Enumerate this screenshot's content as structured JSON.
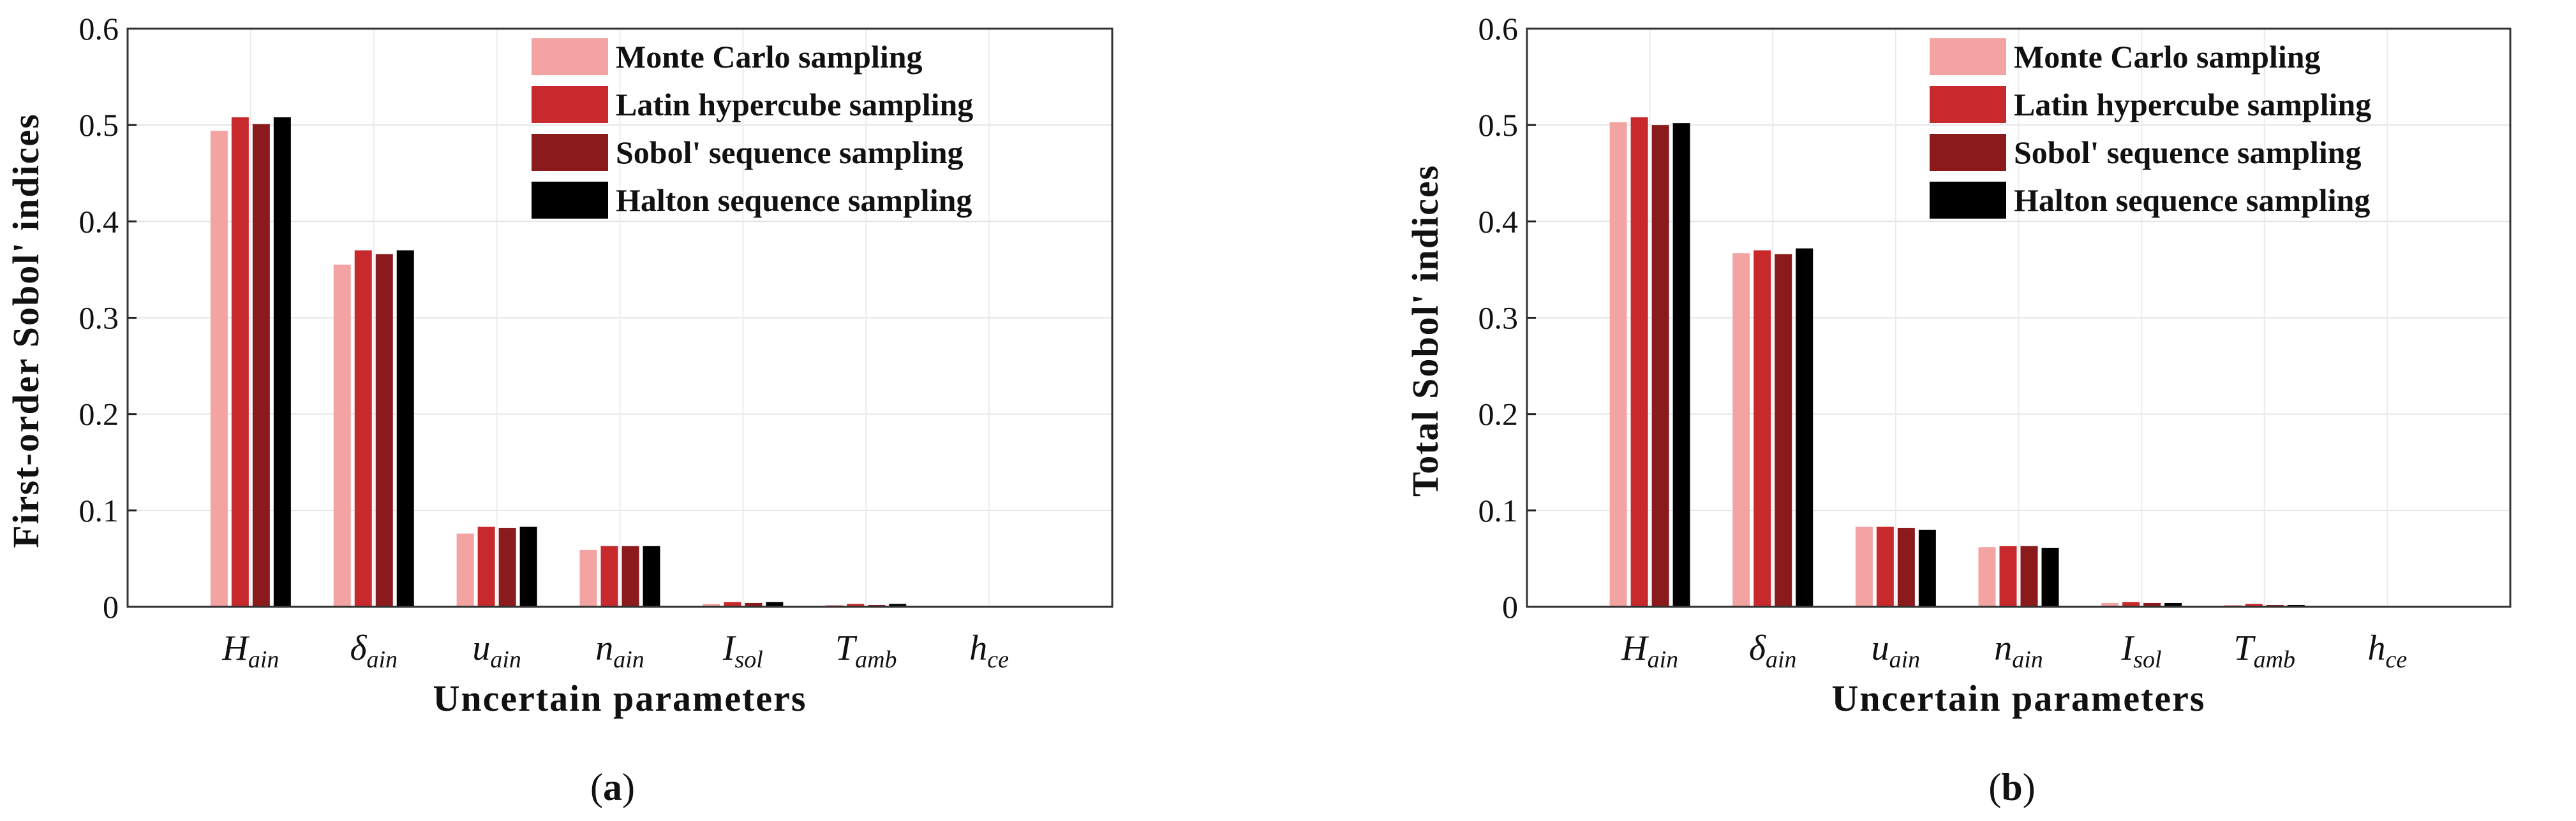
{
  "figure": {
    "colors": [
      "#f4a3a3",
      "#c8292c",
      "#8b1a1c",
      "#000000"
    ]
  },
  "chart_data": [
    {
      "type": "bar",
      "panel_label": "a",
      "xlabel": "Uncertain parameters",
      "ylabel": "First-order Sobol' indices",
      "ylim": [
        0,
        0.6
      ],
      "yticks": [
        "0",
        "0.1",
        "0.2",
        "0.3",
        "0.4",
        "0.5",
        "0.6"
      ],
      "grid": true,
      "legend_position": "top-right",
      "categories": [
        {
          "base": "H",
          "sub": "ain"
        },
        {
          "base": "δ",
          "sub": "ain"
        },
        {
          "base": "u",
          "sub": "ain"
        },
        {
          "base": "n",
          "sub": "ain"
        },
        {
          "base": "I",
          "sub": "sol"
        },
        {
          "base": "T",
          "sub": "amb"
        },
        {
          "base": "h",
          "sub": "ce"
        }
      ],
      "series": [
        {
          "name": "Monte Carlo sampling",
          "values": [
            0.494,
            0.355,
            0.076,
            0.059,
            0.003,
            0.002,
            0.0
          ]
        },
        {
          "name": "Latin hypercube sampling",
          "values": [
            0.508,
            0.37,
            0.083,
            0.063,
            0.005,
            0.003,
            0.0
          ]
        },
        {
          "name": "Sobol' sequence sampling",
          "values": [
            0.501,
            0.366,
            0.082,
            0.063,
            0.004,
            0.002,
            0.0
          ]
        },
        {
          "name": "Halton sequence sampling",
          "values": [
            0.508,
            0.37,
            0.083,
            0.063,
            0.005,
            0.003,
            0.0
          ]
        }
      ]
    },
    {
      "type": "bar",
      "panel_label": "b",
      "xlabel": "Uncertain parameters",
      "ylabel": "Total Sobol' indices",
      "ylim": [
        0,
        0.6
      ],
      "yticks": [
        "0",
        "0.1",
        "0.2",
        "0.3",
        "0.4",
        "0.5",
        "0.6"
      ],
      "grid": true,
      "legend_position": "top-right",
      "categories": [
        {
          "base": "H",
          "sub": "ain"
        },
        {
          "base": "δ",
          "sub": "ain"
        },
        {
          "base": "u",
          "sub": "ain"
        },
        {
          "base": "n",
          "sub": "ain"
        },
        {
          "base": "I",
          "sub": "sol"
        },
        {
          "base": "T",
          "sub": "amb"
        },
        {
          "base": "h",
          "sub": "ce"
        }
      ],
      "series": [
        {
          "name": "Monte Carlo sampling",
          "values": [
            0.503,
            0.367,
            0.083,
            0.062,
            0.004,
            0.002,
            0.0
          ]
        },
        {
          "name": "Latin hypercube sampling",
          "values": [
            0.508,
            0.37,
            0.083,
            0.063,
            0.005,
            0.003,
            0.0
          ]
        },
        {
          "name": "Sobol' sequence sampling",
          "values": [
            0.5,
            0.366,
            0.082,
            0.063,
            0.004,
            0.002,
            0.0
          ]
        },
        {
          "name": "Halton sequence sampling",
          "values": [
            0.502,
            0.372,
            0.08,
            0.061,
            0.004,
            0.002,
            0.0
          ]
        }
      ]
    }
  ]
}
